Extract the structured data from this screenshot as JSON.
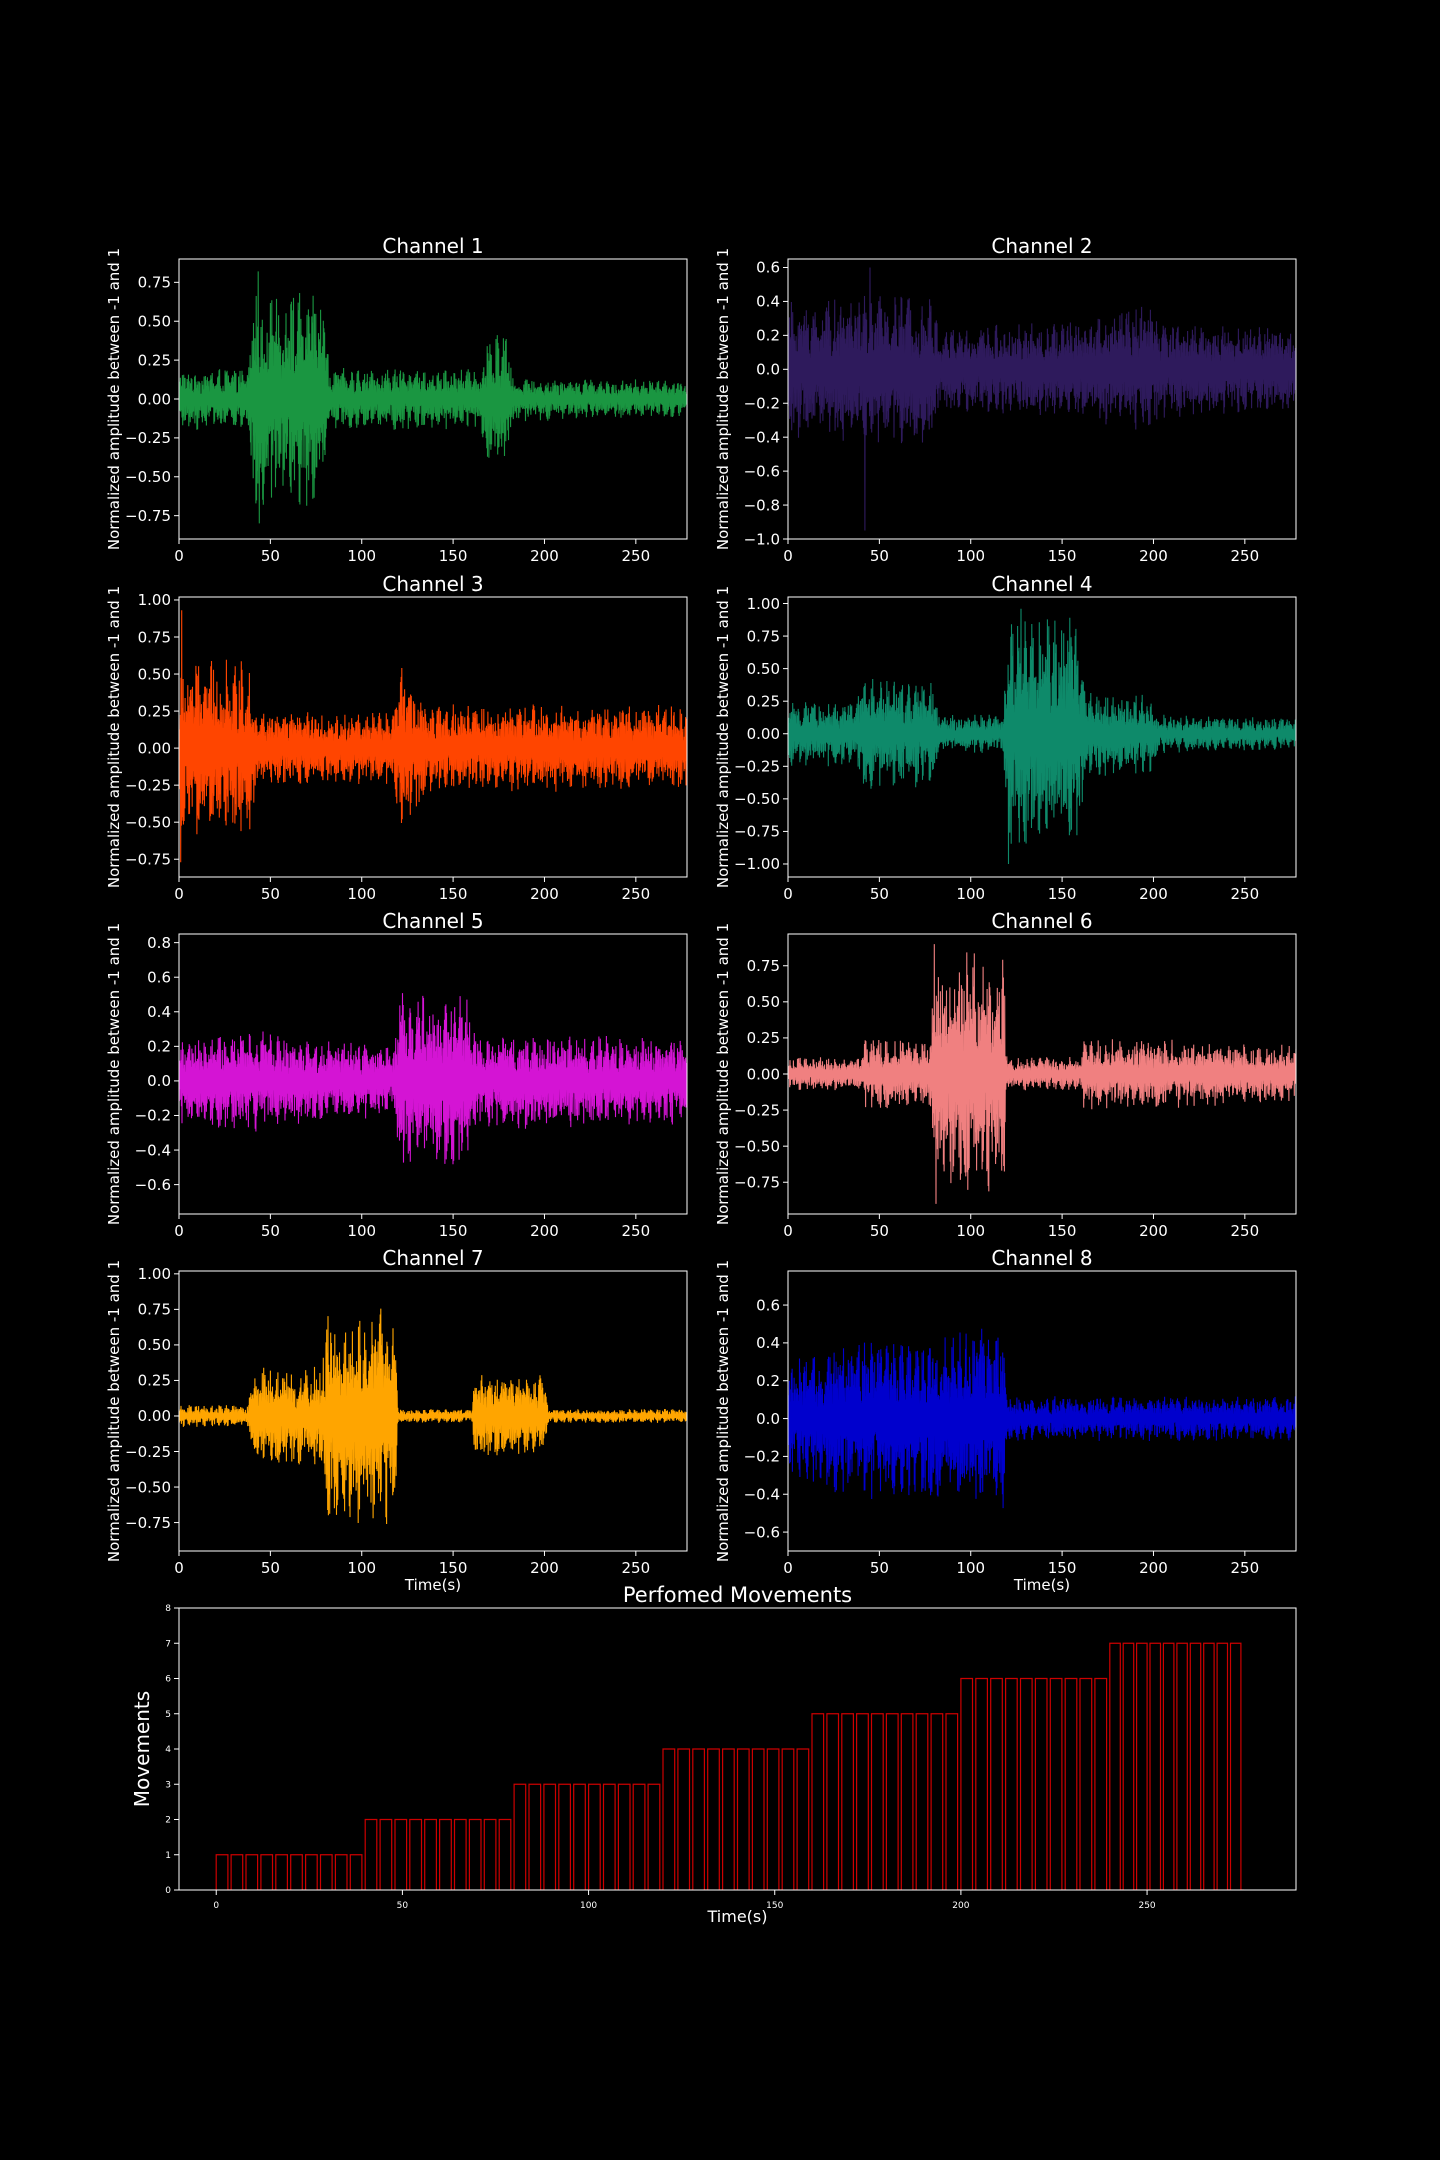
{
  "chart_data": [
    {
      "type": "line",
      "title": "Channel 1",
      "ylabel": "Normalized amplitude between -1 and 1",
      "xlabel": "",
      "color": "#1a9641",
      "xlim": [
        0,
        278
      ],
      "ylim": [
        -0.9,
        0.9
      ],
      "xticks": [
        0,
        50,
        100,
        150,
        200,
        250
      ],
      "yticks": [
        -0.75,
        -0.5,
        -0.25,
        0.0,
        0.25,
        0.5,
        0.75
      ],
      "yticklabels": [
        "−0.75",
        "−0.50",
        "−0.25",
        "0.00",
        "0.25",
        "0.50",
        "0.75"
      ],
      "envelope": {
        "t": [
          0,
          38,
          40,
          80,
          82,
          165,
          168,
          180,
          182,
          278
        ],
        "amp": [
          0.2,
          0.2,
          0.7,
          0.7,
          0.2,
          0.2,
          0.45,
          0.45,
          0.15,
          0.12
        ]
      },
      "peaks": {
        "max": 0.82,
        "min": -0.8
      }
    },
    {
      "type": "line",
      "title": "Channel 2",
      "ylabel": "Normalized amplitude between -1 and 1",
      "xlabel": "",
      "color": "#2e1a5c",
      "xlim": [
        0,
        278
      ],
      "ylim": [
        -1.0,
        0.65
      ],
      "xticks": [
        0,
        50,
        100,
        150,
        200,
        250
      ],
      "yticks": [
        -1.0,
        -0.8,
        -0.6,
        -0.4,
        -0.2,
        0.0,
        0.2,
        0.4,
        0.6
      ],
      "yticklabels": [
        "−1.0",
        "−0.8",
        "−0.6",
        "−0.4",
        "−0.2",
        "0.0",
        "0.2",
        "0.4",
        "0.6"
      ],
      "envelope": {
        "t": [
          0,
          40,
          80,
          82,
          160,
          200,
          202,
          278
        ],
        "amp": [
          0.4,
          0.45,
          0.45,
          0.25,
          0.3,
          0.4,
          0.3,
          0.25
        ]
      },
      "peaks": {
        "max": 0.6,
        "min": -0.95
      }
    },
    {
      "type": "line",
      "title": "Channel 3",
      "ylabel": "Normalized amplitude between -1 and 1",
      "xlabel": "",
      "color": "#ff4500",
      "xlim": [
        0,
        278
      ],
      "ylim": [
        -0.87,
        1.02
      ],
      "xticks": [
        0,
        50,
        100,
        150,
        200,
        250
      ],
      "yticks": [
        -0.75,
        -0.5,
        -0.25,
        0.0,
        0.25,
        0.5,
        0.75,
        1.0
      ],
      "yticklabels": [
        "−0.75",
        "−0.50",
        "−0.25",
        "0.00",
        "0.25",
        "0.50",
        "0.75",
        "1.00"
      ],
      "envelope": {
        "t": [
          0,
          40,
          42,
          118,
          120,
          132,
          134,
          278
        ],
        "amp": [
          0.6,
          0.6,
          0.25,
          0.25,
          0.6,
          0.5,
          0.3,
          0.3
        ]
      },
      "peaks": {
        "max": 0.93,
        "min": -0.77
      }
    },
    {
      "type": "line",
      "title": "Channel 4",
      "ylabel": "Normalized amplitude between -1 and 1",
      "xlabel": "",
      "color": "#0e8a6a",
      "xlim": [
        0,
        278
      ],
      "ylim": [
        -1.1,
        1.05
      ],
      "xticks": [
        0,
        50,
        100,
        150,
        200,
        250
      ],
      "yticks": [
        -1.0,
        -0.75,
        -0.5,
        -0.25,
        0.0,
        0.25,
        0.5,
        0.75,
        1.0
      ],
      "yticklabels": [
        "−1.00",
        "−0.75",
        "−0.50",
        "−0.25",
        "0.00",
        "0.25",
        "0.50",
        "0.75",
        "1.00"
      ],
      "envelope": {
        "t": [
          0,
          38,
          40,
          80,
          82,
          118,
          120,
          160,
          162,
          200,
          202,
          278
        ],
        "amp": [
          0.25,
          0.25,
          0.45,
          0.4,
          0.15,
          0.15,
          0.9,
          0.9,
          0.35,
          0.3,
          0.15,
          0.12
        ]
      },
      "peaks": {
        "max": 0.96,
        "min": -1.0
      }
    },
    {
      "type": "line",
      "title": "Channel 5",
      "ylabel": "Normalized amplitude between -1 and 1",
      "xlabel": "",
      "color": "#d414d4",
      "xlim": [
        0,
        278
      ],
      "ylim": [
        -0.77,
        0.85
      ],
      "xticks": [
        0,
        50,
        100,
        150,
        200,
        250
      ],
      "yticks": [
        -0.6,
        -0.4,
        -0.2,
        0.0,
        0.2,
        0.4,
        0.6,
        0.8
      ],
      "yticklabels": [
        "−0.6",
        "−0.4",
        "−0.2",
        "0.0",
        "0.2",
        "0.4",
        "0.6",
        "0.8"
      ],
      "envelope": {
        "t": [
          0,
          40,
          80,
          118,
          120,
          158,
          160,
          200,
          278
        ],
        "amp": [
          0.25,
          0.3,
          0.25,
          0.2,
          0.55,
          0.5,
          0.3,
          0.28,
          0.25
        ]
      },
      "peaks": {
        "max": 0.77,
        "min": -0.7
      }
    },
    {
      "type": "line",
      "title": "Channel 6",
      "ylabel": "Normalized amplitude between -1 and 1",
      "xlabel": "",
      "color": "#f08080",
      "xlim": [
        0,
        278
      ],
      "ylim": [
        -0.97,
        0.97
      ],
      "xticks": [
        0,
        50,
        100,
        150,
        200,
        250
      ],
      "yticks": [
        -0.75,
        -0.5,
        -0.25,
        0.0,
        0.25,
        0.5,
        0.75
      ],
      "yticklabels": [
        "−0.75",
        "−0.50",
        "−0.25",
        "0.00",
        "0.25",
        "0.50",
        "0.75"
      ],
      "envelope": {
        "t": [
          0,
          40,
          42,
          78,
          80,
          118,
          120,
          160,
          162,
          200,
          278
        ],
        "amp": [
          0.12,
          0.12,
          0.25,
          0.25,
          0.85,
          0.85,
          0.12,
          0.12,
          0.25,
          0.25,
          0.2
        ]
      },
      "peaks": {
        "max": 0.9,
        "min": -0.9
      }
    },
    {
      "type": "line",
      "title": "Channel 7",
      "ylabel": "Normalized amplitude between -1 and 1",
      "xlabel": "Time(s)",
      "color": "#ffa500",
      "xlim": [
        0,
        278
      ],
      "ylim": [
        -0.95,
        1.02
      ],
      "xticks": [
        0,
        50,
        100,
        150,
        200,
        250
      ],
      "yticks": [
        -0.75,
        -0.5,
        -0.25,
        0.0,
        0.25,
        0.5,
        0.75,
        1.0
      ],
      "yticklabels": [
        "−0.75",
        "−0.50",
        "−0.25",
        "0.00",
        "0.25",
        "0.50",
        "0.75",
        "1.00"
      ],
      "envelope": {
        "t": [
          0,
          38,
          40,
          78,
          80,
          118,
          120,
          160,
          162,
          200,
          202,
          278
        ],
        "amp": [
          0.08,
          0.08,
          0.35,
          0.35,
          0.75,
          0.8,
          0.05,
          0.05,
          0.3,
          0.3,
          0.05,
          0.05
        ]
      },
      "peaks": {
        "max": 0.93,
        "min": -0.87
      }
    },
    {
      "type": "line",
      "title": "Channel 8",
      "ylabel": "Normalized amplitude between -1 and 1",
      "xlabel": "Time(s)",
      "color": "#0000cd",
      "xlim": [
        0,
        278
      ],
      "ylim": [
        -0.7,
        0.78
      ],
      "xticks": [
        0,
        50,
        100,
        150,
        200,
        250
      ],
      "yticks": [
        -0.6,
        -0.4,
        -0.2,
        0.0,
        0.2,
        0.4,
        0.6
      ],
      "yticklabels": [
        "−0.6",
        "−0.4",
        "−0.2",
        "0.0",
        "0.2",
        "0.4",
        "0.6"
      ],
      "envelope": {
        "t": [
          0,
          40,
          80,
          118,
          120,
          278
        ],
        "amp": [
          0.3,
          0.45,
          0.45,
          0.5,
          0.12,
          0.12
        ]
      },
      "peaks": {
        "max": 0.72,
        "min": -0.63
      }
    },
    {
      "type": "line",
      "title": "Perfomed Movements",
      "ylabel": "Movements",
      "xlabel": "Time(s)",
      "color": "#cc0000",
      "xlim": [
        -10,
        290
      ],
      "ylim": [
        0,
        8
      ],
      "xticks": [
        0,
        50,
        100,
        150,
        200,
        250
      ],
      "yticks": [
        0,
        1,
        2,
        3,
        4,
        5,
        6,
        7,
        8
      ],
      "yticklabels": [
        "0",
        "1",
        "2",
        "3",
        "4",
        "5",
        "6",
        "7",
        "8"
      ],
      "movements": [
        {
          "label": 1,
          "start": 0,
          "end": 40
        },
        {
          "label": 2,
          "start": 40,
          "end": 80
        },
        {
          "label": 3,
          "start": 80,
          "end": 120
        },
        {
          "label": 4,
          "start": 120,
          "end": 160
        },
        {
          "label": 5,
          "start": 160,
          "end": 200
        },
        {
          "label": 6,
          "start": 200,
          "end": 240
        },
        {
          "label": 7,
          "start": 240,
          "end": 276
        }
      ],
      "repetitions_per_movement": 10
    }
  ]
}
